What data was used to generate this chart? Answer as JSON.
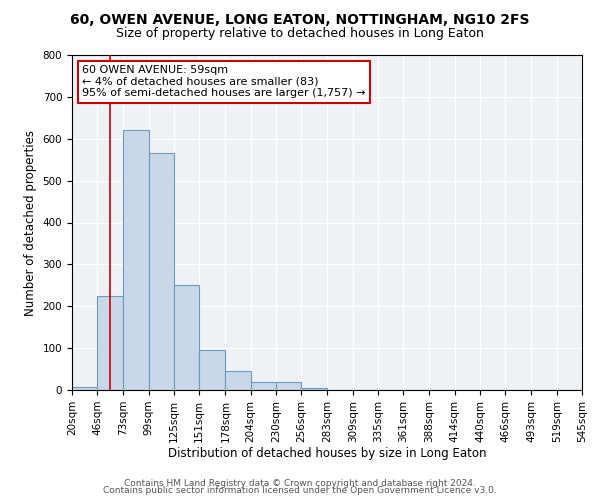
{
  "title": "60, OWEN AVENUE, LONG EATON, NOTTINGHAM, NG10 2FS",
  "subtitle": "Size of property relative to detached houses in Long Eaton",
  "xlabel": "Distribution of detached houses by size in Long Eaton",
  "ylabel": "Number of detached properties",
  "bin_labels": [
    "20sqm",
    "46sqm",
    "73sqm",
    "99sqm",
    "125sqm",
    "151sqm",
    "178sqm",
    "204sqm",
    "230sqm",
    "256sqm",
    "283sqm",
    "309sqm",
    "335sqm",
    "361sqm",
    "388sqm",
    "414sqm",
    "440sqm",
    "466sqm",
    "493sqm",
    "519sqm",
    "545sqm"
  ],
  "bar_values": [
    8,
    225,
    620,
    565,
    250,
    95,
    45,
    20,
    20,
    5,
    0,
    0,
    0,
    0,
    0,
    0,
    0,
    0,
    0,
    0
  ],
  "bar_color": "#c8d8e8",
  "bar_edge_color": "#6a9cbf",
  "red_line_x": 59,
  "annotation_text": "60 OWEN AVENUE: 59sqm\n← 4% of detached houses are smaller (83)\n95% of semi-detached houses are larger (1,757) →",
  "annotation_box_color": "#ffffff",
  "annotation_box_edge_color": "#cc0000",
  "red_line_color": "#cc0000",
  "footer_line1": "Contains HM Land Registry data © Crown copyright and database right 2024.",
  "footer_line2": "Contains public sector information licensed under the Open Government Licence v3.0.",
  "ylim": [
    0,
    800
  ],
  "yticks": [
    0,
    100,
    200,
    300,
    400,
    500,
    600,
    700,
    800
  ],
  "bin_edges": [
    20,
    46,
    73,
    99,
    125,
    151,
    178,
    204,
    230,
    256,
    283,
    309,
    335,
    361,
    388,
    414,
    440,
    466,
    493,
    519,
    545
  ],
  "title_fontsize": 10,
  "subtitle_fontsize": 9,
  "axis_label_fontsize": 8.5,
  "tick_fontsize": 7.5,
  "footer_fontsize": 6.5
}
